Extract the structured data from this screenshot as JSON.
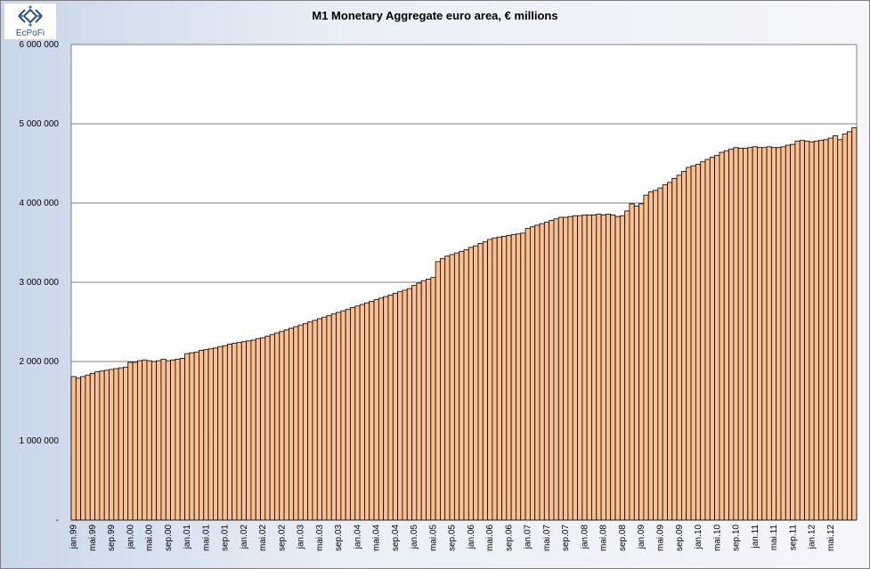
{
  "logo": {
    "text": "EcPoFi"
  },
  "chart_data": {
    "type": "bar",
    "title": "M1 Monetary Aggregate euro area, € millions",
    "xlabel": "",
    "ylabel": "",
    "ylim": [
      0,
      6000000
    ],
    "grid": true,
    "legend": "none",
    "y_ticks": [
      {
        "value": 0,
        "label": "-"
      },
      {
        "value": 1000000,
        "label": "1 000 000"
      },
      {
        "value": 2000000,
        "label": "2 000 000"
      },
      {
        "value": 3000000,
        "label": "3 000 000"
      },
      {
        "value": 4000000,
        "label": "4 000 000"
      },
      {
        "value": 5000000,
        "label": "5 000 000"
      },
      {
        "value": 6000000,
        "label": "6 000 000"
      }
    ],
    "x_tick_labels": [
      {
        "index": 0,
        "label": "jan.99"
      },
      {
        "index": 4,
        "label": "mai.99"
      },
      {
        "index": 8,
        "label": "sep.99"
      },
      {
        "index": 12,
        "label": "jan.00"
      },
      {
        "index": 16,
        "label": "mai.00"
      },
      {
        "index": 20,
        "label": "sep.00"
      },
      {
        "index": 24,
        "label": "jan.01"
      },
      {
        "index": 28,
        "label": "mai.01"
      },
      {
        "index": 32,
        "label": "sep.01"
      },
      {
        "index": 36,
        "label": "jan.02"
      },
      {
        "index": 40,
        "label": "mai.02"
      },
      {
        "index": 44,
        "label": "sep.02"
      },
      {
        "index": 48,
        "label": "jan.03"
      },
      {
        "index": 52,
        "label": "mai.03"
      },
      {
        "index": 56,
        "label": "sep.03"
      },
      {
        "index": 60,
        "label": "jan.04"
      },
      {
        "index": 64,
        "label": "mai.04"
      },
      {
        "index": 68,
        "label": "sep.04"
      },
      {
        "index": 72,
        "label": "jan.05"
      },
      {
        "index": 76,
        "label": "mai.05"
      },
      {
        "index": 80,
        "label": "sep.05"
      },
      {
        "index": 84,
        "label": "jan.06"
      },
      {
        "index": 88,
        "label": "mai.06"
      },
      {
        "index": 92,
        "label": "sep.06"
      },
      {
        "index": 96,
        "label": "jan.07"
      },
      {
        "index": 100,
        "label": "mai.07"
      },
      {
        "index": 104,
        "label": "sep.07"
      },
      {
        "index": 108,
        "label": "jan.08"
      },
      {
        "index": 112,
        "label": "mai.08"
      },
      {
        "index": 116,
        "label": "sep.08"
      },
      {
        "index": 120,
        "label": "jan.09"
      },
      {
        "index": 124,
        "label": "mai.09"
      },
      {
        "index": 128,
        "label": "sep.09"
      },
      {
        "index": 132,
        "label": "jan.10"
      },
      {
        "index": 136,
        "label": "mai.10"
      },
      {
        "index": 140,
        "label": "sep.10"
      },
      {
        "index": 144,
        "label": "jan.11"
      },
      {
        "index": 148,
        "label": "mai.11"
      },
      {
        "index": 152,
        "label": "sep.11"
      },
      {
        "index": 156,
        "label": "jan.12"
      },
      {
        "index": 160,
        "label": "mai.12"
      }
    ],
    "series": [
      {
        "values": [
          1810000,
          1790000,
          1810000,
          1830000,
          1850000,
          1870000,
          1880000,
          1890000,
          1900000,
          1910000,
          1920000,
          1930000,
          1990000,
          1990000,
          2010000,
          2020000,
          2010000,
          2000000,
          2010000,
          2030000,
          2010000,
          2020000,
          2030000,
          2040000,
          2100000,
          2110000,
          2120000,
          2140000,
          2150000,
          2160000,
          2170000,
          2190000,
          2200000,
          2220000,
          2230000,
          2240000,
          2250000,
          2260000,
          2270000,
          2290000,
          2300000,
          2320000,
          2340000,
          2360000,
          2380000,
          2400000,
          2420000,
          2440000,
          2460000,
          2480000,
          2500000,
          2520000,
          2540000,
          2560000,
          2580000,
          2600000,
          2620000,
          2640000,
          2660000,
          2680000,
          2700000,
          2720000,
          2740000,
          2760000,
          2780000,
          2800000,
          2820000,
          2840000,
          2860000,
          2880000,
          2900000,
          2920000,
          2960000,
          2990000,
          3020000,
          3040000,
          3060000,
          3260000,
          3300000,
          3330000,
          3350000,
          3370000,
          3390000,
          3410000,
          3440000,
          3460000,
          3490000,
          3510000,
          3540000,
          3560000,
          3570000,
          3580000,
          3590000,
          3600000,
          3610000,
          3620000,
          3680000,
          3700000,
          3720000,
          3740000,
          3760000,
          3780000,
          3800000,
          3820000,
          3820000,
          3830000,
          3840000,
          3840000,
          3850000,
          3850000,
          3850000,
          3860000,
          3850000,
          3860000,
          3850000,
          3830000,
          3840000,
          3900000,
          3990000,
          3960000,
          3990000,
          4100000,
          4140000,
          4160000,
          4190000,
          4230000,
          4260000,
          4310000,
          4350000,
          4400000,
          4450000,
          4470000,
          4490000,
          4520000,
          4550000,
          4580000,
          4600000,
          4640000,
          4660000,
          4680000,
          4700000,
          4690000,
          4690000,
          4700000,
          4710000,
          4700000,
          4700000,
          4710000,
          4700000,
          4700000,
          4710000,
          4730000,
          4740000,
          4780000,
          4790000,
          4780000,
          4770000,
          4780000,
          4790000,
          4800000,
          4820000,
          4850000,
          4800000,
          4870000,
          4900000,
          4950000
        ]
      }
    ]
  }
}
